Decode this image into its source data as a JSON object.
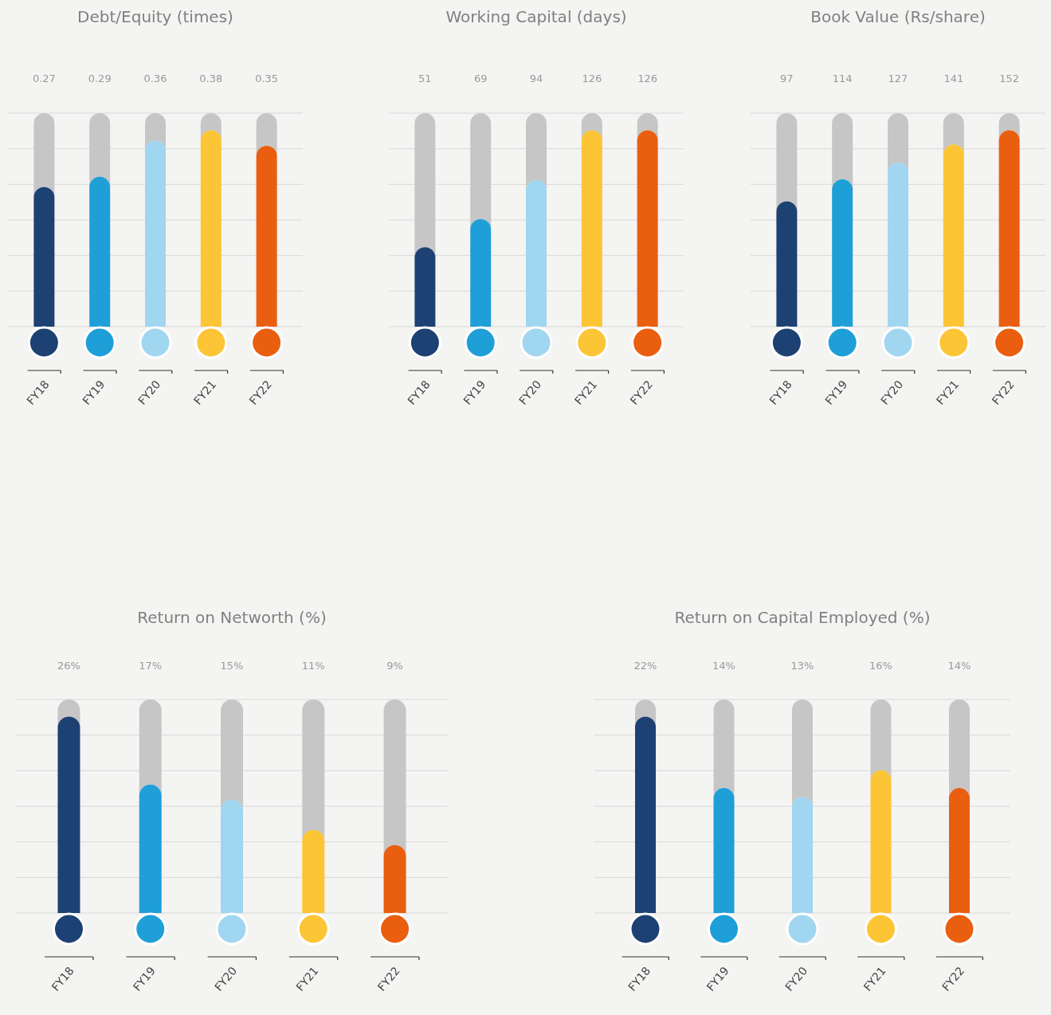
{
  "chart_data": [
    {
      "type": "bar",
      "title": "Debt/Equity (times)",
      "categories": [
        "FY18",
        "FY19",
        "FY20",
        "FY21",
        "FY22"
      ],
      "values": [
        0.27,
        0.29,
        0.36,
        0.38,
        0.35
      ],
      "colors": [
        "#1e4174",
        "#1e9fd8",
        "#a0d6f0",
        "#fcc535",
        "#ea5e10"
      ],
      "data_labels": true,
      "grid": "y"
    },
    {
      "type": "bar",
      "title": "Working Capital (days)",
      "categories": [
        "FY18",
        "FY19",
        "FY20",
        "FY21",
        "FY22"
      ],
      "values": [
        51,
        69,
        94,
        126,
        126
      ],
      "colors": [
        "#1e4174",
        "#1e9fd8",
        "#a0d6f0",
        "#fcc535",
        "#ea5e10"
      ],
      "data_labels": true,
      "grid": "y"
    },
    {
      "type": "bar",
      "title": "Book Value (Rs/share)",
      "categories": [
        "FY18",
        "FY19",
        "FY20",
        "FY21",
        "FY22"
      ],
      "values": [
        97,
        114,
        127,
        141,
        152
      ],
      "colors": [
        "#1e4174",
        "#1e9fd8",
        "#a0d6f0",
        "#fcc535",
        "#ea5e10"
      ],
      "data_labels": true,
      "grid": "y"
    },
    {
      "type": "bar",
      "title": "Return on Networth (%)",
      "categories": [
        "FY18",
        "FY19",
        "FY20",
        "FY21",
        "FY22"
      ],
      "values": [
        26,
        17,
        15,
        11,
        9
      ],
      "value_labels": [
        "26%",
        "17%",
        "15%",
        "11%",
        "9%"
      ],
      "colors": [
        "#1e4174",
        "#1e9fd8",
        "#a0d6f0",
        "#fcc535",
        "#ea5e10"
      ],
      "grid": "y"
    },
    {
      "type": "bar",
      "title": "Return on Capital Employed (%)",
      "categories": [
        "FY18",
        "FY19",
        "FY20",
        "FY21",
        "FY22"
      ],
      "values": [
        22,
        14,
        13,
        16,
        14
      ],
      "value_labels": [
        "22%",
        "14%",
        "13%",
        "16%",
        "14%"
      ],
      "colors": [
        "#1e4174",
        "#1e9fd8",
        "#a0d6f0",
        "#fcc535",
        "#ea5e10"
      ],
      "grid": "y"
    }
  ]
}
